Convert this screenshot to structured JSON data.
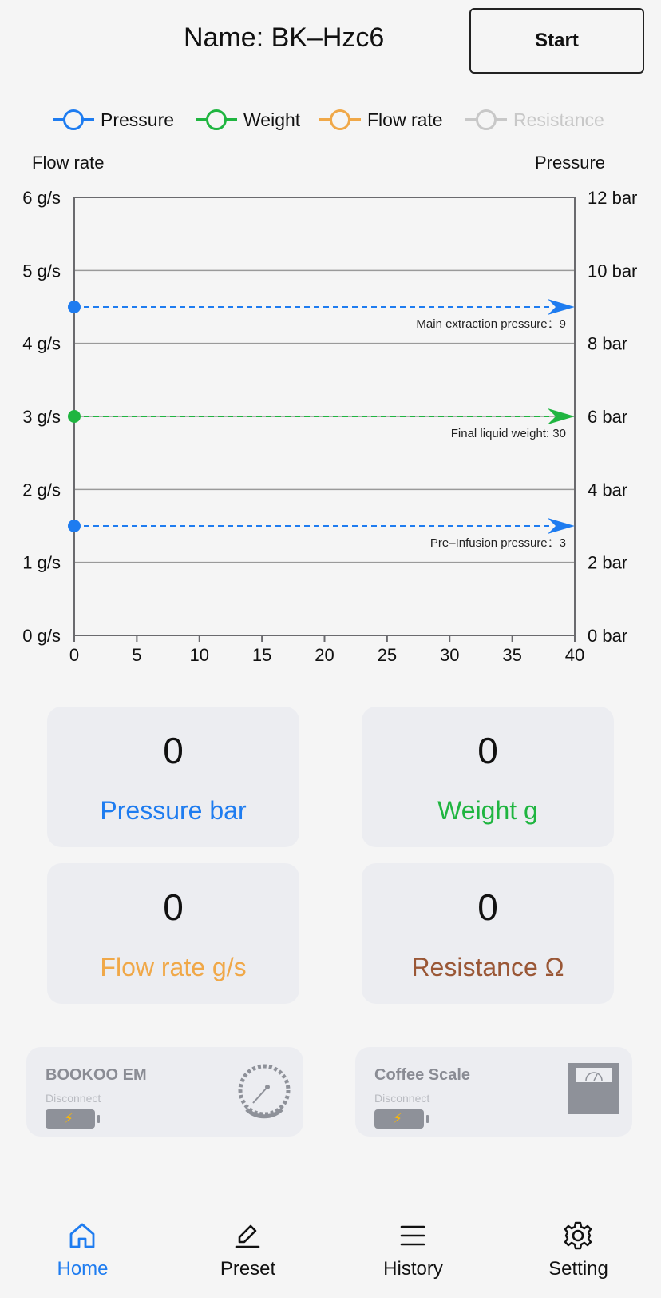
{
  "header": {
    "title": "Name: BK–Hzc6",
    "start_label": "Start"
  },
  "legend": [
    {
      "label": "Pressure",
      "color": "#1e7cf0",
      "active": true
    },
    {
      "label": "Weight",
      "color": "#1fb540",
      "active": true
    },
    {
      "label": "Flow rate",
      "color": "#f0a848",
      "active": true
    },
    {
      "label": "Resistance",
      "color": "#c8c8c8",
      "active": false
    }
  ],
  "chart_data": {
    "type": "line",
    "left_axis_title": "Flow rate",
    "right_axis_title": "Pressure",
    "x_ticks": [
      "0",
      "5",
      "10",
      "15",
      "20",
      "25",
      "30",
      "35",
      "40"
    ],
    "xlim": [
      0,
      40
    ],
    "left_ticks": [
      "0 g/s",
      "1 g/s",
      "2 g/s",
      "3 g/s",
      "4 g/s",
      "5 g/s",
      "6 g/s"
    ],
    "left_ylim": [
      0,
      6
    ],
    "right_ticks": [
      "0 bar",
      "2 bar",
      "4 bar",
      "6 bar",
      "8 bar",
      "10 bar",
      "12 bar"
    ],
    "right_ylim": [
      0,
      12
    ],
    "grid": true,
    "targets": [
      {
        "label": "Main extraction pressure：9",
        "pressure_bar": 9,
        "color": "#1e7cf0"
      },
      {
        "label": "Final liquid weight: 30",
        "pressure_bar": 6,
        "color": "#1fb540"
      },
      {
        "label": "Pre–Infusion pressure：3",
        "pressure_bar": 3,
        "color": "#1e7cf0"
      }
    ]
  },
  "metrics": [
    {
      "value": "0",
      "label": "Pressure bar",
      "color": "#1e7cf0"
    },
    {
      "value": "0",
      "label": "Weight g",
      "color": "#1fb540"
    },
    {
      "value": "0",
      "label": "Flow rate g/s",
      "color": "#f0a848"
    },
    {
      "value": "0",
      "label": "Resistance Ω",
      "color": "#9a5736"
    }
  ],
  "devices": [
    {
      "name": "BOOKOO EM",
      "status": "Disconnect",
      "icon": "pressure-gauge-icon"
    },
    {
      "name": "Coffee Scale",
      "status": "Disconnect",
      "icon": "scale-icon"
    }
  ],
  "tabs": [
    {
      "label": "Home",
      "icon": "home-icon",
      "active": true
    },
    {
      "label": "Preset",
      "icon": "pencil-icon",
      "active": false
    },
    {
      "label": "History",
      "icon": "list-icon",
      "active": false
    },
    {
      "label": "Setting",
      "icon": "gear-icon",
      "active": false
    }
  ],
  "colors": {
    "active_tab": "#1e7cf0",
    "inactive_tab": "#111111",
    "grid": "#9a9a9a"
  }
}
